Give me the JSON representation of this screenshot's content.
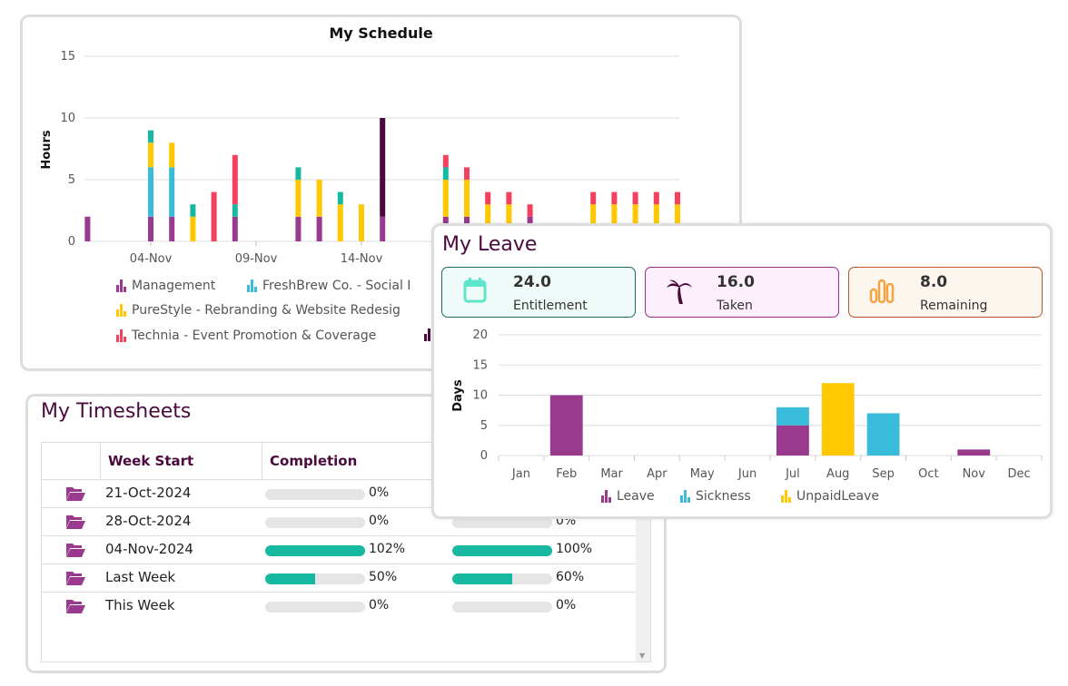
{
  "schedule": {
    "title": "My Schedule",
    "legend": [
      "Management",
      "FreshBrew Co. - Social I",
      "PureStyle - Rebranding & Website Redesig",
      "Technia - Event Promotion & Coverage"
    ]
  },
  "chart_data": [
    {
      "type": "bar",
      "stacked": true,
      "title": "My Schedule",
      "ylabel": "Hours",
      "ylim": [
        0,
        15
      ],
      "yticks": [
        0,
        5,
        10,
        15
      ],
      "xticks": [
        "04-Nov",
        "09-Nov",
        "14-Nov"
      ],
      "x": [
        "01-Nov",
        "04-Nov",
        "05-Nov",
        "06-Nov",
        "07-Nov",
        "08-Nov",
        "11-Nov",
        "12-Nov",
        "13-Nov",
        "14-Nov",
        "15-Nov",
        "18-Nov",
        "19-Nov",
        "20-Nov",
        "21-Nov",
        "22-Nov",
        "25-Nov",
        "26-Nov",
        "27-Nov",
        "28-Nov",
        "29-Nov"
      ],
      "grid": true,
      "legend": "bottom",
      "series": [
        {
          "name": "Management",
          "color": "#993a8f",
          "values": [
            2,
            2,
            2,
            0,
            0,
            2,
            2,
            2,
            0,
            0,
            2,
            2,
            2,
            0,
            0,
            2,
            0,
            0,
            0,
            0,
            0
          ]
        },
        {
          "name": "FreshBrew Co. - Social I",
          "color": "#38bcd9",
          "values": [
            0,
            4,
            4,
            0,
            0,
            0,
            0,
            0,
            0,
            0,
            0,
            0,
            0,
            0,
            0,
            0,
            0,
            0,
            0,
            0,
            0
          ]
        },
        {
          "name": "PureStyle - Rebranding & Website Redesig",
          "color": "#ffc800",
          "values": [
            0,
            2,
            2,
            2,
            0,
            0,
            3,
            3,
            3,
            3,
            0,
            3,
            3,
            3,
            3,
            0,
            3,
            3,
            3,
            3,
            3
          ]
        },
        {
          "color": "#16b8a0",
          "values": [
            0,
            1,
            0,
            1,
            0,
            1,
            1,
            0,
            1,
            0,
            0,
            1,
            0,
            0,
            0,
            0,
            0,
            0,
            0,
            0,
            0
          ]
        },
        {
          "name": "Technia - Event Promotion & Coverage",
          "color": "#f43f5e",
          "values": [
            0,
            0,
            0,
            0,
            4,
            4,
            0,
            0,
            0,
            0,
            0,
            1,
            1,
            1,
            1,
            1,
            1,
            1,
            1,
            1,
            1
          ]
        },
        {
          "color": "#4a0a3d",
          "values": [
            0,
            0,
            0,
            0,
            0,
            0,
            0,
            0,
            0,
            0,
            8,
            0,
            0,
            0,
            0,
            0,
            0,
            0,
            0,
            0,
            0
          ]
        }
      ]
    },
    {
      "type": "bar",
      "stacked": true,
      "ylabel": "Days",
      "ylim": [
        0,
        20
      ],
      "yticks": [
        0,
        5,
        10,
        15,
        20
      ],
      "grid": true,
      "legend": "bottom",
      "categories": [
        "Jan",
        "Feb",
        "Mar",
        "Apr",
        "May",
        "Jun",
        "Jul",
        "Aug",
        "Sep",
        "Oct",
        "Nov",
        "Dec"
      ],
      "series": [
        {
          "name": "Leave",
          "color": "#993a8f",
          "values": [
            0,
            10,
            0,
            0,
            0,
            0,
            5,
            0,
            0,
            0,
            1,
            0
          ]
        },
        {
          "name": "Sickness",
          "color": "#38bcd9",
          "values": [
            0,
            0,
            0,
            0,
            0,
            0,
            3,
            0,
            7,
            0,
            0,
            0
          ]
        },
        {
          "name": "UnpaidLeave",
          "color": "#ffc800",
          "values": [
            0,
            0,
            0,
            0,
            0,
            0,
            0,
            12,
            0,
            0,
            0,
            0
          ]
        }
      ]
    }
  ],
  "timesheets": {
    "title": "My Timesheets",
    "headers": [
      "Week Start",
      "Completion"
    ],
    "rows": [
      {
        "week": "21-Oct-2024",
        "c1": 0,
        "c1_label": "0%",
        "c2": 0,
        "c2_label": "0%"
      },
      {
        "week": "28-Oct-2024",
        "c1": 0,
        "c1_label": "0%",
        "c2": 0,
        "c2_label": "0%"
      },
      {
        "week": "04-Nov-2024",
        "c1": 100,
        "c1_label": "102%",
        "c2": 100,
        "c2_label": "100%"
      },
      {
        "week": "Last Week",
        "c1": 50,
        "c1_label": "50%",
        "c2": 60,
        "c2_label": "60%"
      },
      {
        "week": "This Week",
        "c1": 0,
        "c1_label": "0%",
        "c2": 0,
        "c2_label": "0%"
      }
    ]
  },
  "leave": {
    "title": "My Leave",
    "kpis": [
      {
        "value": "24.0",
        "label": "Entitlement",
        "icon": "calendar-icon",
        "border": "#1d6b5e",
        "bg": "#effbf8",
        "iconColor": "#5ee6cc"
      },
      {
        "value": "16.0",
        "label": "Taken",
        "icon": "palm-tree-icon",
        "border": "#9a2b90",
        "bg": "#fdf0fc",
        "iconColor": "#4a0a3d"
      },
      {
        "value": "8.0",
        "label": "Remaining",
        "icon": "bar-chart-icon",
        "border": "#c0502a",
        "bg": "#fdf6ee",
        "iconColor": "#f4a340"
      }
    ]
  }
}
